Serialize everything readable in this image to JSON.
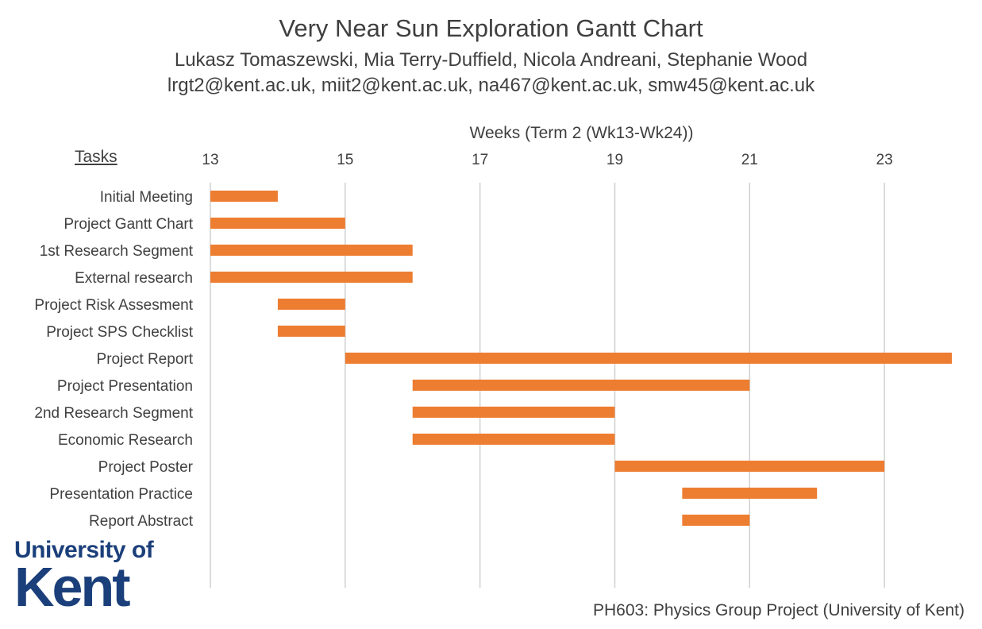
{
  "chart_data": {
    "type": "bar",
    "orientation": "horizontal-gantt",
    "title": "Very Near Sun Exploration Gantt Chart",
    "subtitle_lines": [
      "Lukasz Tomaszewski, Mia Terry-Duffield, Nicola Andreani, Stephanie Wood",
      "lrgt2@kent.ac.uk, miit2@kent.ac.uk, na467@kent.ac.uk, smw45@kent.ac.uk"
    ],
    "xlabel": "Weeks (Term 2 (Wk13-Wk24))",
    "ylabel": "Tasks",
    "xlim": [
      13,
      24
    ],
    "xticks": [
      "13",
      "15",
      "17",
      "19",
      "21",
      "23"
    ],
    "grid": true,
    "bar_color": "#ED7D31",
    "tasks": [
      {
        "name": "Initial Meeting",
        "start": 13,
        "end": 14
      },
      {
        "name": "Project Gantt Chart",
        "start": 13,
        "end": 15
      },
      {
        "name": "1st Research Segment",
        "start": 13,
        "end": 16
      },
      {
        "name": "External research",
        "start": 13,
        "end": 16
      },
      {
        "name": "Project Risk Assesment",
        "start": 14,
        "end": 15
      },
      {
        "name": "Project SPS Checklist",
        "start": 14,
        "end": 15
      },
      {
        "name": "Project Report",
        "start": 15,
        "end": 24
      },
      {
        "name": "Project Presentation",
        "start": 16,
        "end": 21
      },
      {
        "name": "2nd Research Segment",
        "start": 16,
        "end": 19
      },
      {
        "name": "Economic Research",
        "start": 16,
        "end": 19
      },
      {
        "name": "Project Poster",
        "start": 19,
        "end": 23
      },
      {
        "name": "Presentation Practice",
        "start": 20,
        "end": 22
      },
      {
        "name": "Report Abstract",
        "start": 20,
        "end": 21
      }
    ]
  },
  "logo": {
    "line1": "University of",
    "line2": "Kent"
  },
  "footer": "PH603: Physics Group Project (University of Kent)"
}
